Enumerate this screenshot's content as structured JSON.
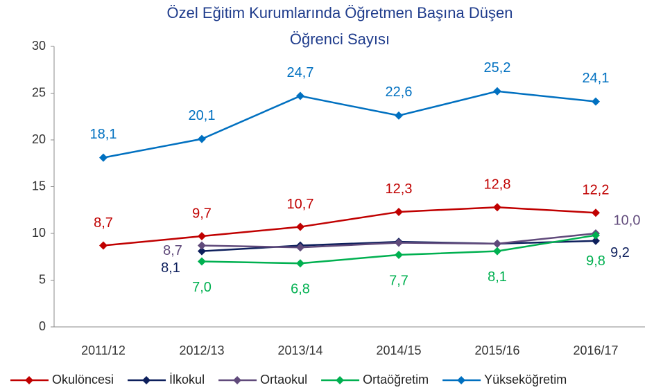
{
  "chart_data": {
    "type": "line",
    "title": [
      "Özel Eğitim Kurumlarında Öğretmen Başına Düşen",
      "Öğrenci Sayısı"
    ],
    "categories": [
      "2011/12",
      "2012/13",
      "2013/14",
      "2014/15",
      "2015/16",
      "2016/17"
    ],
    "ylim": [
      0,
      30
    ],
    "yticks": [
      0,
      5,
      10,
      15,
      20,
      25,
      30
    ],
    "grid": false,
    "legend": "bottom",
    "series": [
      {
        "name": "Okulöncesi",
        "color": "#c00000",
        "values": [
          8.7,
          9.7,
          10.7,
          12.3,
          12.8,
          12.2
        ],
        "value_labels": [
          "8,7",
          "9,7",
          "10,7",
          "12,3",
          "12,8",
          "12,2"
        ]
      },
      {
        "name": "İlkokul",
        "color": "#0d1f5c",
        "values": [
          null,
          8.1,
          8.7,
          9.1,
          8.9,
          9.2
        ],
        "value_labels": [
          null,
          "8,1",
          null,
          null,
          null,
          "9,2"
        ]
      },
      {
        "name": "Ortaokul",
        "color": "#604a7b",
        "values": [
          null,
          8.7,
          8.5,
          9.0,
          8.9,
          10.0
        ],
        "value_labels": [
          null,
          "8,7",
          null,
          null,
          null,
          "10,0"
        ]
      },
      {
        "name": "Ortaöğretim",
        "color": "#00b050",
        "values": [
          null,
          7.0,
          6.8,
          7.7,
          8.1,
          9.8
        ],
        "value_labels": [
          null,
          "7,0",
          "6,8",
          "7,7",
          "8,1",
          "9,8"
        ]
      },
      {
        "name": "Yükseköğretim",
        "color": "#0070c0",
        "values": [
          18.1,
          20.1,
          24.7,
          22.6,
          25.2,
          24.1
        ],
        "value_labels": [
          "18,1",
          "20,1",
          "24,7",
          "22,6",
          "25,2",
          "24,1"
        ]
      }
    ]
  }
}
